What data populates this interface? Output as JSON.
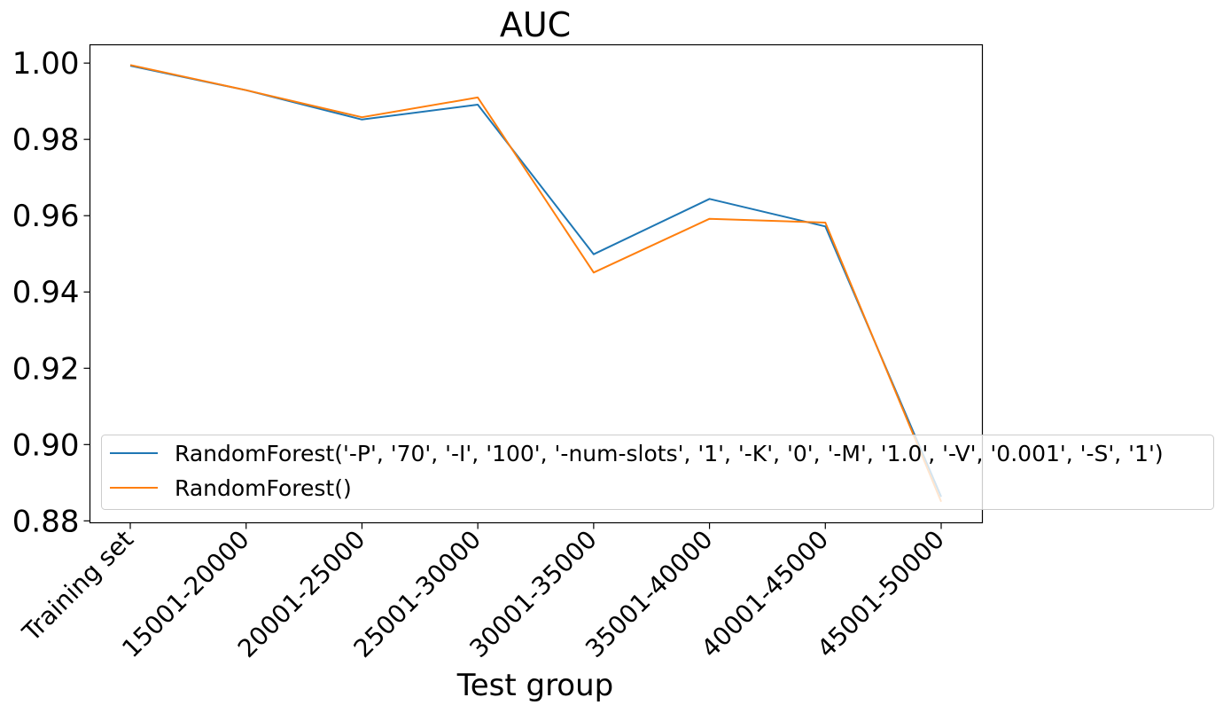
{
  "chart_data": {
    "type": "line",
    "title": "AUC",
    "xlabel": "Test group",
    "ylabel": "",
    "categories": [
      "Training set",
      "15001-20000",
      "20001-25000",
      "25001-30000",
      "30001-35000",
      "35001-40000",
      "40001-45000",
      "45001-50000"
    ],
    "ylim": [
      0.8795,
      1.0048
    ],
    "yticks": [
      "0.88",
      "0.90",
      "0.92",
      "0.94",
      "0.96",
      "0.98",
      "1.00"
    ],
    "grid": false,
    "legend_position": "lower right",
    "series": [
      {
        "name": "RandomForest('-P', '70', '-I', '100', '-num-slots', '1', '-K', '0', '-M', '1.0', '-V', '0.001', '-S', '1')",
        "color": "#1f77b4",
        "values": [
          0.9993,
          0.9929,
          0.9852,
          0.9891,
          0.9499,
          0.9644,
          0.9572,
          0.8863
        ]
      },
      {
        "name": "RandomForest()",
        "color": "#ff7f0e",
        "values": [
          0.9995,
          0.9929,
          0.9858,
          0.991,
          0.9451,
          0.9592,
          0.9582,
          0.885
        ]
      }
    ]
  }
}
